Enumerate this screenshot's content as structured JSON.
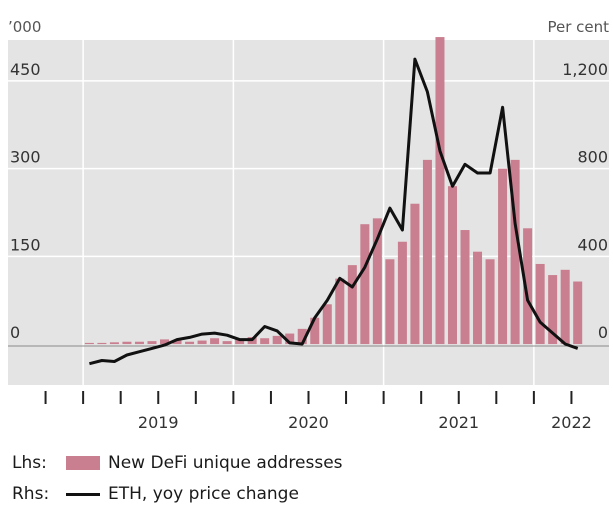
{
  "chart_data": {
    "type": "bar+line",
    "left_axis_unit": "’000",
    "right_axis_unit": "Per cent",
    "left_ticks": [
      0,
      150,
      300,
      450
    ],
    "left_tick_labels": [
      "0",
      "150",
      "300",
      "450"
    ],
    "right_ticks": [
      0,
      400,
      800,
      1200
    ],
    "right_tick_labels": [
      "0",
      "400",
      "800",
      "1,200"
    ],
    "ylim_left": [
      -70,
      520
    ],
    "ylim_right": [
      -187,
      1387
    ],
    "xlim": [
      2018.5,
      2022.5
    ],
    "x_tick_labels": [
      "2019",
      "2020",
      "2021",
      "2022"
    ],
    "colors": {
      "bars": "#c97f8f",
      "line": "#111111",
      "plot_bg": "#e4e4e4",
      "grid": "#ffffff"
    },
    "bar_series": {
      "name": "New DeFi unique addresses",
      "x": [
        "2019-01",
        "2019-02",
        "2019-03",
        "2019-04",
        "2019-05",
        "2019-06",
        "2019-07",
        "2019-08",
        "2019-09",
        "2019-10",
        "2019-11",
        "2019-12",
        "2020-01",
        "2020-02",
        "2020-03",
        "2020-04",
        "2020-05",
        "2020-06",
        "2020-07",
        "2020-08",
        "2020-09",
        "2020-10",
        "2020-11",
        "2020-12",
        "2021-01",
        "2021-02",
        "2021-03",
        "2021-04",
        "2021-05",
        "2021-06",
        "2021-07",
        "2021-08",
        "2021-09",
        "2021-10",
        "2021-11",
        "2021-12",
        "2022-01",
        "2022-02",
        "2022-03",
        "2022-04"
      ],
      "values": [
        2,
        2,
        3,
        4,
        4,
        5,
        8,
        6,
        4,
        6,
        10,
        5,
        8,
        12,
        10,
        14,
        18,
        26,
        45,
        68,
        112,
        135,
        205,
        215,
        145,
        175,
        240,
        315,
        525,
        270,
        195,
        158,
        145,
        300,
        315,
        198,
        137,
        118,
        127,
        107
      ]
    },
    "line_series": {
      "name": "ETH, yoy price change",
      "x": [
        "2019-01",
        "2019-02",
        "2019-03",
        "2019-04",
        "2019-05",
        "2019-06",
        "2019-07",
        "2019-08",
        "2019-09",
        "2019-10",
        "2019-11",
        "2019-12",
        "2020-01",
        "2020-02",
        "2020-03",
        "2020-04",
        "2020-05",
        "2020-06",
        "2020-07",
        "2020-08",
        "2020-09",
        "2020-10",
        "2020-11",
        "2020-12",
        "2021-01",
        "2021-02",
        "2021-03",
        "2021-04",
        "2021-05",
        "2021-06",
        "2021-07",
        "2021-08",
        "2021-09",
        "2021-10",
        "2021-11",
        "2021-12",
        "2022-01",
        "2022-02",
        "2022-03",
        "2022-04"
      ],
      "values": [
        -90,
        -75,
        -80,
        -50,
        -35,
        -20,
        -5,
        20,
        30,
        45,
        50,
        40,
        20,
        20,
        80,
        60,
        5,
        0,
        120,
        200,
        300,
        260,
        350,
        480,
        620,
        520,
        1300,
        1150,
        880,
        720,
        820,
        780,
        780,
        1080,
        550,
        200,
        100,
        50,
        0,
        -20
      ]
    },
    "legend": {
      "bar": {
        "prefix": "Lhs:",
        "label": "New DeFi unique addresses"
      },
      "line": {
        "prefix": "Rhs:",
        "label": "ETH, yoy price change"
      }
    }
  }
}
